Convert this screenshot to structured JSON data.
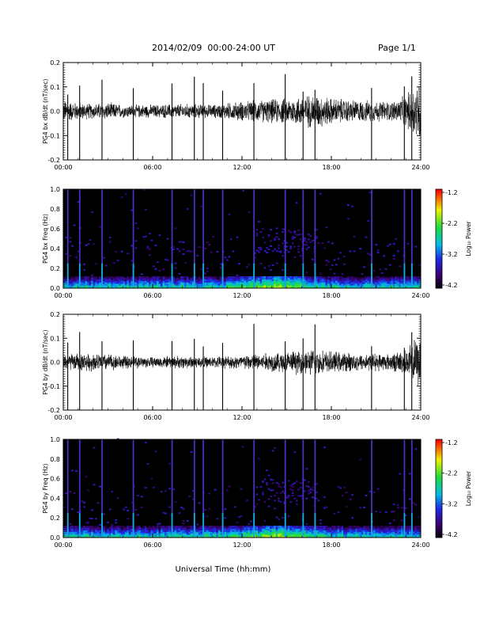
{
  "header": {
    "title": "2014/02/09  00:00-24:00 UT",
    "page": "Page 1/1"
  },
  "xlabel": "Universal Time (hh:mm)",
  "chart_data": [
    {
      "type": "line",
      "ylabel": "PG4 bx dB/dt (nT/sec)",
      "ylim": [
        -0.2,
        0.2
      ],
      "yticks": [
        "0.2",
        "0.1",
        "0.0",
        "-0.1",
        "-0.2"
      ],
      "xlim": [
        0,
        24
      ],
      "xticks": [
        "00:00",
        "06:00",
        "12:00",
        "18:00",
        "24:00"
      ],
      "spikes_hours": [
        0.3,
        1.1,
        2.6,
        4.7,
        7.3,
        8.8,
        9.4,
        10.7,
        12.8,
        14.9,
        16.1,
        16.9,
        20.7,
        22.9,
        23.4
      ],
      "envelope": [
        [
          0,
          0.05
        ],
        [
          1,
          0.04
        ],
        [
          2,
          0.035
        ],
        [
          3,
          0.04
        ],
        [
          4,
          0.03
        ],
        [
          6,
          0.03
        ],
        [
          8,
          0.035
        ],
        [
          10,
          0.03
        ],
        [
          12,
          0.045
        ],
        [
          14,
          0.055
        ],
        [
          15,
          0.06
        ],
        [
          16,
          0.07
        ],
        [
          17,
          0.08
        ],
        [
          18,
          0.06
        ],
        [
          20,
          0.05
        ],
        [
          22,
          0.045
        ],
        [
          23,
          0.07
        ],
        [
          23.5,
          0.12
        ],
        [
          24,
          0.15
        ]
      ]
    },
    {
      "type": "heatmap",
      "ylabel": "PG4 bx Freq (Hz)",
      "ylim": [
        0,
        1
      ],
      "yticks": [
        "1.0",
        "0.8",
        "0.6",
        "0.4",
        "0.2",
        "0.0"
      ],
      "xlim": [
        0,
        24
      ],
      "xticks": [
        "00:00",
        "06:00",
        "12:00",
        "18:00",
        "24:00"
      ],
      "colorbar": {
        "label": "Log₁₀ Power",
        "ticks": [
          "-1.2",
          "-2.2",
          "-3.2",
          "-4.2"
        ],
        "range": [
          -4.2,
          -1.2
        ]
      },
      "vertical_lines_hours": [
        0.3,
        1.1,
        2.6,
        4.7,
        7.3,
        8.8,
        9.4,
        10.7,
        12.8,
        14.9,
        16.1,
        16.9,
        20.7,
        22.9,
        23.4
      ],
      "low_freq_band_max_hz": 0.12,
      "enhanced_region": {
        "hours": [
          13,
          17
        ],
        "freq_hz": [
          0.35,
          0.6
        ]
      }
    },
    {
      "type": "line",
      "ylabel": "PG4 by dB/dt (nT/sec)",
      "ylim": [
        -0.2,
        0.2
      ],
      "yticks": [
        "0.2",
        "0.1",
        "0.0",
        "-0.1",
        "-0.2"
      ],
      "xlim": [
        0,
        24
      ],
      "xticks": [
        "00:00",
        "06:00",
        "12:00",
        "18:00",
        "24:00"
      ],
      "spikes_hours": [
        0.3,
        1.1,
        2.6,
        4.7,
        7.3,
        8.8,
        9.4,
        10.7,
        12.8,
        14.9,
        16.1,
        16.9,
        20.7,
        22.9,
        23.4
      ],
      "envelope": [
        [
          0,
          0.04
        ],
        [
          1,
          0.04
        ],
        [
          2,
          0.04
        ],
        [
          3,
          0.04
        ],
        [
          4,
          0.03
        ],
        [
          6,
          0.025
        ],
        [
          8,
          0.03
        ],
        [
          10,
          0.025
        ],
        [
          12,
          0.035
        ],
        [
          14,
          0.045
        ],
        [
          15,
          0.05
        ],
        [
          16,
          0.055
        ],
        [
          17,
          0.06
        ],
        [
          18,
          0.05
        ],
        [
          20,
          0.04
        ],
        [
          22,
          0.04
        ],
        [
          23,
          0.06
        ],
        [
          23.5,
          0.1
        ],
        [
          24,
          0.12
        ]
      ]
    },
    {
      "type": "heatmap",
      "ylabel": "PG4 by Freq (Hz)",
      "ylim": [
        0,
        1
      ],
      "yticks": [
        "1.0",
        "0.8",
        "0.6",
        "0.4",
        "0.2",
        "0.0"
      ],
      "xlim": [
        0,
        24
      ],
      "xticks": [
        "00:00",
        "06:00",
        "12:00",
        "18:00",
        "24:00"
      ],
      "colorbar": {
        "label": "Log₁₀ Power",
        "ticks": [
          "-1.2",
          "-2.2",
          "-3.2",
          "-4.2"
        ],
        "range": [
          -4.2,
          -1.2
        ]
      },
      "vertical_lines_hours": [
        0.3,
        1.1,
        2.6,
        4.7,
        7.3,
        8.8,
        9.4,
        10.7,
        12.8,
        14.9,
        16.1,
        16.9,
        20.7,
        22.9,
        23.4
      ],
      "low_freq_band_max_hz": 0.12,
      "enhanced_region": {
        "hours": [
          13,
          17
        ],
        "freq_hz": [
          0.35,
          0.6
        ]
      }
    }
  ]
}
